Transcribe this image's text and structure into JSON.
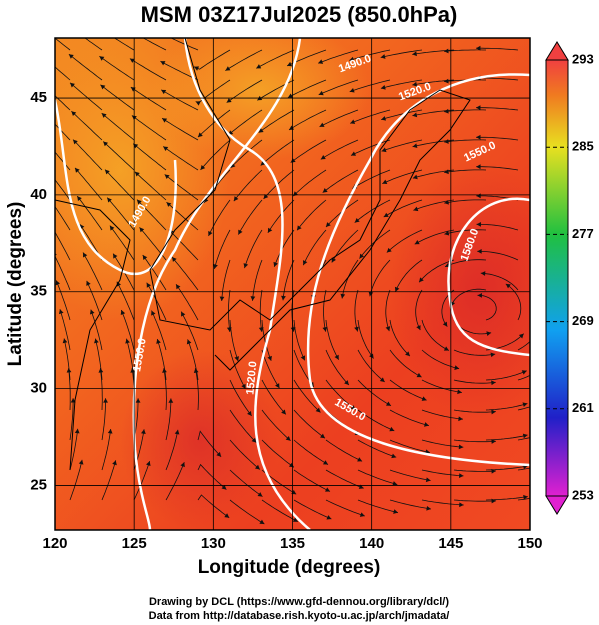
{
  "header": {
    "title": "MSM 03Z17Jul2025 (850.0hPa)"
  },
  "chart_data": {
    "type": "map",
    "x_label": "Longitude (degrees)",
    "y_label": "Latitude  (degrees)",
    "xlim": [
      120,
      150
    ],
    "ylim": [
      22.7,
      48.1
    ],
    "xticks": [
      120,
      125,
      130,
      135,
      140,
      145,
      150
    ],
    "yticks": [
      25,
      30,
      35,
      40,
      45
    ],
    "contour_labels": [
      "1490.0",
      "1520.0",
      "1550.0",
      "1580.0",
      "1490.0",
      "1550.0",
      "1520.0",
      "1550.0"
    ],
    "colorbar": {
      "lim": [
        253,
        293
      ],
      "ticks": [
        293,
        285,
        277,
        269,
        261,
        253
      ]
    }
  },
  "footer": {
    "lines": [
      "Drawing by DCL (https://www.gfd-dennou.org/library/dcl/)",
      "Data from http://database.rish.kyoto-u.ac.jp/arch/jmadata/"
    ]
  }
}
